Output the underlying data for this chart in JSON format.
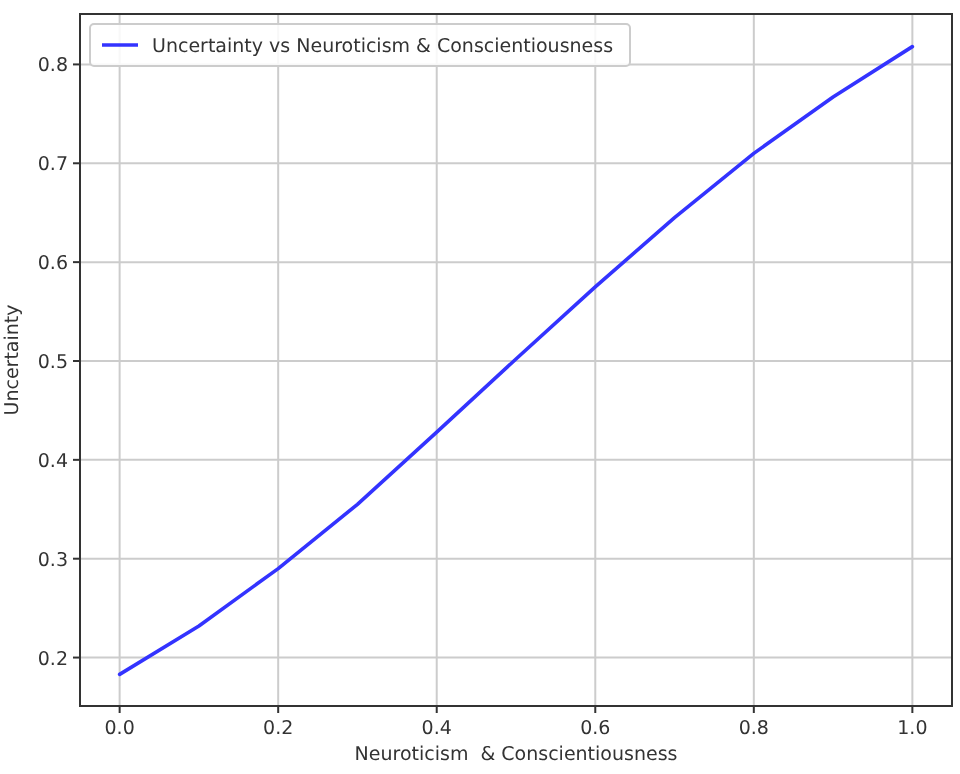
{
  "chart_data": {
    "type": "line",
    "xlabel": "Neuroticism  & Conscientiousness",
    "ylabel": "Uncertainty",
    "x": [
      0,
      0.1,
      0.2,
      0.3,
      0.4,
      0.5,
      0.6,
      0.7,
      0.8,
      0.9,
      1.0
    ],
    "series": [
      {
        "name": "Uncertainty vs Neuroticism & Conscientiousness",
        "color": "#3333ff",
        "values": [
          0.183,
          0.232,
          0.29,
          0.355,
          0.428,
          0.502,
          0.575,
          0.645,
          0.71,
          0.767,
          0.818
        ]
      }
    ],
    "xlim": [
      -0.05,
      1.05
    ],
    "ylim": [
      0.151,
      0.851
    ],
    "xticks": [
      {
        "value": 0,
        "label": "0.0"
      },
      0.2,
      0.4,
      0.6,
      0.8,
      {
        "value": 1,
        "label": "1.0"
      }
    ],
    "yticks": [
      0.2,
      0.3,
      0.4,
      0.5,
      0.6,
      0.7,
      0.8
    ],
    "grid": true,
    "legend": "top left",
    "marker": "none",
    "line_style": "solid"
  }
}
